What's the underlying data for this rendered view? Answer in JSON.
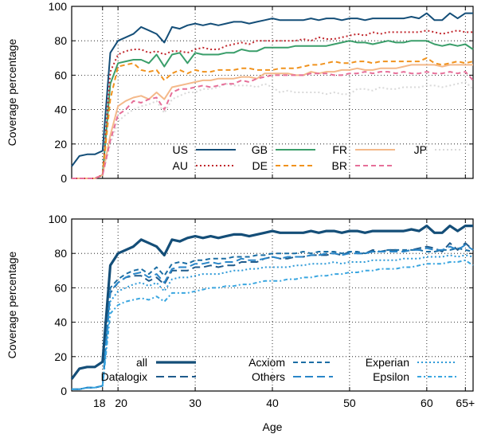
{
  "chart_data": [
    {
      "type": "line",
      "ylabel": "Coverage percentage",
      "xlabel": "",
      "xlim": [
        14,
        66
      ],
      "ylim": [
        0,
        100
      ],
      "yticks": [
        0,
        20,
        40,
        60,
        80,
        100
      ],
      "xticks": [
        18,
        20,
        30,
        40,
        50,
        60,
        65
      ],
      "xtick_labels": [],
      "grid": "dotted vertical at x=18,20 and dotted grid lines",
      "legend_position": "bottom-center",
      "x": [
        14,
        15,
        16,
        17,
        18,
        19,
        20,
        21,
        22,
        23,
        24,
        25,
        26,
        27,
        28,
        29,
        30,
        31,
        32,
        33,
        34,
        35,
        36,
        37,
        38,
        39,
        40,
        41,
        42,
        43,
        44,
        45,
        46,
        47,
        48,
        49,
        50,
        51,
        52,
        53,
        54,
        55,
        56,
        57,
        58,
        59,
        60,
        61,
        62,
        63,
        64,
        65,
        66
      ],
      "series": [
        {
          "name": "US",
          "color": "#144e78",
          "dash": "solid",
          "width": 2,
          "values": [
            7,
            13,
            14,
            14,
            16,
            73,
            80,
            82,
            84,
            88,
            86,
            84,
            79,
            88,
            87,
            89,
            90,
            89,
            90,
            89,
            90,
            91,
            91,
            90,
            91,
            92,
            93,
            92,
            92,
            92,
            92,
            93,
            92,
            93,
            93,
            92,
            93,
            93,
            92,
            93,
            93,
            93,
            93,
            93,
            94,
            93,
            96,
            92,
            92,
            96,
            93,
            96,
            96
          ]
        },
        {
          "name": "GB",
          "color": "#3a9e6a",
          "dash": "solid",
          "width": 2,
          "values": [
            0,
            0,
            0,
            0,
            2,
            55,
            67,
            68,
            69,
            69,
            67,
            72,
            65,
            72,
            73,
            67,
            73,
            72,
            72,
            72,
            73,
            73,
            75,
            74,
            74,
            76,
            76,
            76,
            76,
            77,
            77,
            77,
            77,
            77,
            78,
            79,
            80,
            79,
            79,
            78,
            79,
            80,
            79,
            79,
            80,
            80,
            80,
            78,
            77,
            78,
            77,
            78,
            75
          ]
        },
        {
          "name": "FR",
          "color": "#f4b98a",
          "dash": "solid",
          "width": 2,
          "values": [
            0,
            0,
            0,
            0,
            2,
            25,
            42,
            45,
            47,
            48,
            46,
            50,
            46,
            53,
            54,
            55,
            56,
            57,
            57,
            58,
            58,
            58,
            59,
            59,
            58,
            61,
            61,
            61,
            61,
            60,
            60,
            62,
            61,
            62,
            62,
            63,
            63,
            64,
            63,
            63,
            64,
            64,
            64,
            65,
            66,
            66,
            66,
            66,
            65,
            66,
            66,
            66,
            66
          ]
        },
        {
          "name": "JP",
          "color": "#d9d9d9",
          "dash": "dotted",
          "width": 2,
          "values": [
            0,
            0,
            0,
            0,
            2,
            20,
            33,
            37,
            40,
            42,
            43,
            45,
            38,
            46,
            48,
            50,
            50,
            52,
            52,
            53,
            55,
            54,
            54,
            54,
            53,
            55,
            53,
            50,
            51,
            50,
            50,
            50,
            50,
            49,
            50,
            49,
            49,
            52,
            52,
            51,
            53,
            52,
            52,
            53,
            53,
            53,
            54,
            54,
            53,
            54,
            55,
            56,
            52
          ]
        },
        {
          "name": "AU",
          "color": "#c1272d",
          "dash": "dotted",
          "width": 2,
          "values": [
            0,
            0,
            0,
            0,
            2,
            62,
            72,
            74,
            75,
            75,
            73,
            74,
            72,
            74,
            74,
            73,
            75,
            76,
            75,
            75,
            77,
            78,
            79,
            78,
            80,
            80,
            80,
            80,
            80,
            80,
            81,
            80,
            82,
            81,
            81,
            82,
            83,
            84,
            83,
            85,
            84,
            85,
            85,
            85,
            85,
            85,
            86,
            85,
            84,
            85,
            86,
            85,
            85
          ]
        },
        {
          "name": "DE",
          "color": "#f0921d",
          "dash": "dashed",
          "width": 2,
          "values": [
            0,
            0,
            0,
            0,
            2,
            46,
            65,
            66,
            67,
            63,
            62,
            63,
            57,
            61,
            63,
            61,
            63,
            62,
            62,
            63,
            63,
            63,
            64,
            64,
            63,
            63,
            63,
            64,
            64,
            64,
            65,
            66,
            66,
            67,
            68,
            67,
            67,
            68,
            68,
            67,
            68,
            68,
            68,
            68,
            68,
            68,
            70,
            67,
            66,
            67,
            68,
            67,
            68
          ]
        },
        {
          "name": "BR",
          "color": "#e66f99",
          "dash": "dashed",
          "width": 2,
          "values": [
            0,
            0,
            0,
            0,
            2,
            22,
            37,
            40,
            45,
            44,
            46,
            47,
            40,
            50,
            52,
            52,
            53,
            54,
            53,
            54,
            55,
            55,
            57,
            56,
            58,
            59,
            60,
            60,
            60,
            60,
            60,
            61,
            61,
            61,
            60,
            60,
            61,
            61,
            62,
            61,
            62,
            62,
            61,
            62,
            61,
            61,
            62,
            61,
            61,
            62,
            61,
            62,
            57
          ]
        }
      ],
      "legend_entries": [
        "US",
        "GB",
        "FR",
        "JP",
        "AU",
        "DE",
        "BR"
      ]
    },
    {
      "type": "line",
      "ylabel": "Coverage percentage",
      "xlabel": "Age",
      "xlim": [
        14,
        66
      ],
      "ylim": [
        0,
        100
      ],
      "yticks": [
        0,
        20,
        40,
        60,
        80,
        100
      ],
      "xticks": [
        18,
        20,
        30,
        40,
        50,
        60,
        65
      ],
      "xtick_labels": [
        "18",
        "20",
        "30",
        "40",
        "50",
        "60",
        "65+"
      ],
      "grid": "dotted grid lines",
      "legend_position": "bottom-center",
      "x": [
        14,
        15,
        16,
        17,
        18,
        19,
        20,
        21,
        22,
        23,
        24,
        25,
        26,
        27,
        28,
        29,
        30,
        31,
        32,
        33,
        34,
        35,
        36,
        37,
        38,
        39,
        40,
        41,
        42,
        43,
        44,
        45,
        46,
        47,
        48,
        49,
        50,
        51,
        52,
        53,
        54,
        55,
        56,
        57,
        58,
        59,
        60,
        61,
        62,
        63,
        64,
        65,
        66
      ],
      "series": [
        {
          "name": "all",
          "color": "#144e78",
          "dash": "solid",
          "width": 3.2,
          "values": [
            7,
            13,
            14,
            14,
            17,
            73,
            80,
            82,
            84,
            88,
            86,
            84,
            79,
            88,
            87,
            89,
            90,
            89,
            90,
            89,
            90,
            91,
            91,
            90,
            91,
            92,
            93,
            92,
            92,
            92,
            92,
            93,
            92,
            93,
            93,
            92,
            93,
            93,
            92,
            93,
            93,
            93,
            93,
            93,
            94,
            93,
            96,
            92,
            92,
            96,
            93,
            96,
            96
          ]
        },
        {
          "name": "Datalogix",
          "color": "#1f5b8c",
          "dash": "longdash",
          "width": 2,
          "values": [
            1,
            1,
            2,
            2,
            3,
            57,
            63,
            66,
            67,
            67,
            64,
            66,
            62,
            70,
            70,
            70,
            72,
            72,
            73,
            72,
            73,
            73,
            75,
            75,
            75,
            77,
            78,
            77,
            77,
            78,
            78,
            79,
            79,
            79,
            80,
            79,
            81,
            80,
            80,
            82,
            81,
            82,
            82,
            81,
            82,
            83,
            84,
            83,
            81,
            86,
            82,
            86,
            82
          ]
        },
        {
          "name": "Acxiom",
          "color": "#1c6ea4",
          "dash": "dashed",
          "width": 2,
          "values": [
            1,
            1,
            2,
            2,
            3,
            60,
            65,
            68,
            70,
            71,
            68,
            72,
            67,
            74,
            75,
            74,
            76,
            76,
            77,
            77,
            77,
            78,
            78,
            78,
            79,
            79,
            80,
            80,
            80,
            80,
            81,
            80,
            81,
            81,
            81,
            80,
            81,
            81,
            80,
            81,
            81,
            82,
            82,
            82,
            82,
            82,
            81,
            81,
            82,
            82,
            83,
            82,
            81
          ]
        },
        {
          "name": "Others",
          "color": "#2a86c8",
          "dash": "longdash",
          "width": 2,
          "values": [
            1,
            1,
            2,
            2,
            3,
            58,
            63,
            66,
            68,
            69,
            66,
            68,
            63,
            71,
            72,
            72,
            74,
            74,
            75,
            74,
            75,
            75,
            77,
            76,
            76,
            77,
            78,
            77,
            78,
            78,
            78,
            79,
            79,
            80,
            80,
            79,
            80,
            80,
            80,
            81,
            81,
            81,
            81,
            81,
            82,
            82,
            83,
            82,
            82,
            84,
            82,
            85,
            82
          ]
        },
        {
          "name": "Experian",
          "color": "#2f9ad8",
          "dash": "dotted",
          "width": 2,
          "values": [
            1,
            1,
            2,
            2,
            3,
            52,
            58,
            60,
            62,
            63,
            61,
            63,
            58,
            65,
            66,
            66,
            67,
            68,
            68,
            68,
            69,
            70,
            70,
            71,
            71,
            72,
            72,
            72,
            72,
            73,
            73,
            74,
            74,
            74,
            75,
            74,
            75,
            75,
            75,
            76,
            76,
            76,
            76,
            77,
            77,
            77,
            78,
            78,
            78,
            79,
            78,
            79,
            78
          ]
        },
        {
          "name": "Epsilon",
          "color": "#3aa6e0",
          "dash": "dashdot",
          "width": 2,
          "values": [
            1,
            1,
            2,
            2,
            3,
            45,
            50,
            52,
            53,
            54,
            53,
            55,
            52,
            57,
            57,
            57,
            58,
            59,
            60,
            60,
            61,
            61,
            62,
            62,
            63,
            64,
            64,
            64,
            65,
            65,
            66,
            66,
            67,
            67,
            68,
            68,
            69,
            69,
            70,
            70,
            71,
            71,
            71,
            72,
            72,
            73,
            74,
            74,
            74,
            75,
            75,
            76,
            73
          ]
        }
      ],
      "legend_entries": [
        "all",
        "Datalogix",
        "Acxiom",
        "Others",
        "Experian",
        "Epsilon"
      ]
    }
  ]
}
